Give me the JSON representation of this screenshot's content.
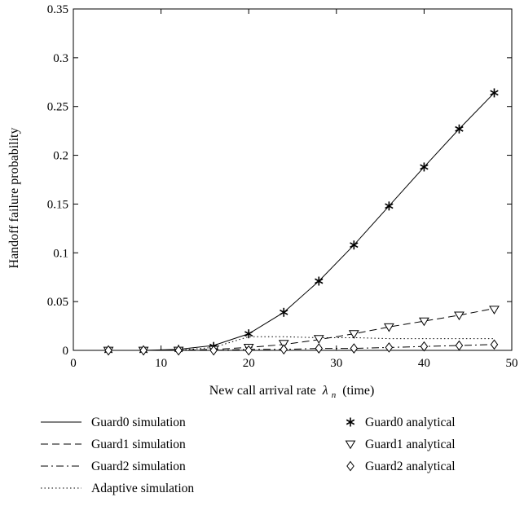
{
  "chart_data": {
    "type": "line",
    "title": "",
    "xlabel": "New call arrival rate",
    "xlabel_symbol": "λ",
    "xlabel_subscript": "n",
    "xlabel_unit": "(time)",
    "ylabel": "Handoff failure probability",
    "xlim": [
      0,
      50
    ],
    "ylim": [
      0,
      0.35
    ],
    "xticks": [
      0,
      10,
      20,
      30,
      40,
      50
    ],
    "yticks": [
      0,
      0.05,
      0.1,
      0.15,
      0.2,
      0.25,
      0.3,
      0.35
    ],
    "grid": false,
    "legend_position": "bottom",
    "x": [
      4,
      8,
      12,
      16,
      20,
      24,
      28,
      32,
      36,
      40,
      44,
      48
    ],
    "series": [
      {
        "name": "Guard0 simulation",
        "kind": "line",
        "line_style": "solid",
        "values": [
          0,
          0,
          0.001,
          0.005,
          0.017,
          0.039,
          0.071,
          0.108,
          0.148,
          0.188,
          0.227,
          0.264
        ]
      },
      {
        "name": "Guard1 simulation",
        "kind": "line",
        "line_style": "dashed",
        "values": [
          0,
          0,
          0,
          0.001,
          0.003,
          0.006,
          0.011,
          0.017,
          0.024,
          0.03,
          0.036,
          0.043
        ]
      },
      {
        "name": "Guard2 simulation",
        "kind": "line",
        "line_style": "dashdot",
        "values": [
          0,
          0,
          0,
          0,
          0.001,
          0.001,
          0.002,
          0.002,
          0.003,
          0.004,
          0.005,
          0.006
        ]
      },
      {
        "name": "Adaptive simulation",
        "kind": "line",
        "line_style": "dotted",
        "values": [
          0,
          0,
          0,
          0.003,
          0.014,
          0.014,
          0.013,
          0.013,
          0.012,
          0.012,
          0.012,
          0.012
        ]
      },
      {
        "name": "Guard0 analytical",
        "kind": "marker",
        "marker": "asterisk",
        "values": [
          0,
          0,
          0.001,
          0.004,
          0.017,
          0.039,
          0.071,
          0.108,
          0.148,
          0.188,
          0.227,
          0.264
        ]
      },
      {
        "name": "Guard1 analytical",
        "kind": "marker",
        "marker": "triangle-down",
        "values": [
          0,
          0,
          0,
          0.001,
          0.003,
          0.007,
          0.012,
          0.017,
          0.024,
          0.03,
          0.036,
          0.042
        ]
      },
      {
        "name": "Guard2 analytical",
        "kind": "marker",
        "marker": "diamond",
        "values": [
          0,
          0,
          0,
          0,
          0,
          0.001,
          0.002,
          0.002,
          0.003,
          0.004,
          0.005,
          0.006
        ]
      }
    ]
  }
}
